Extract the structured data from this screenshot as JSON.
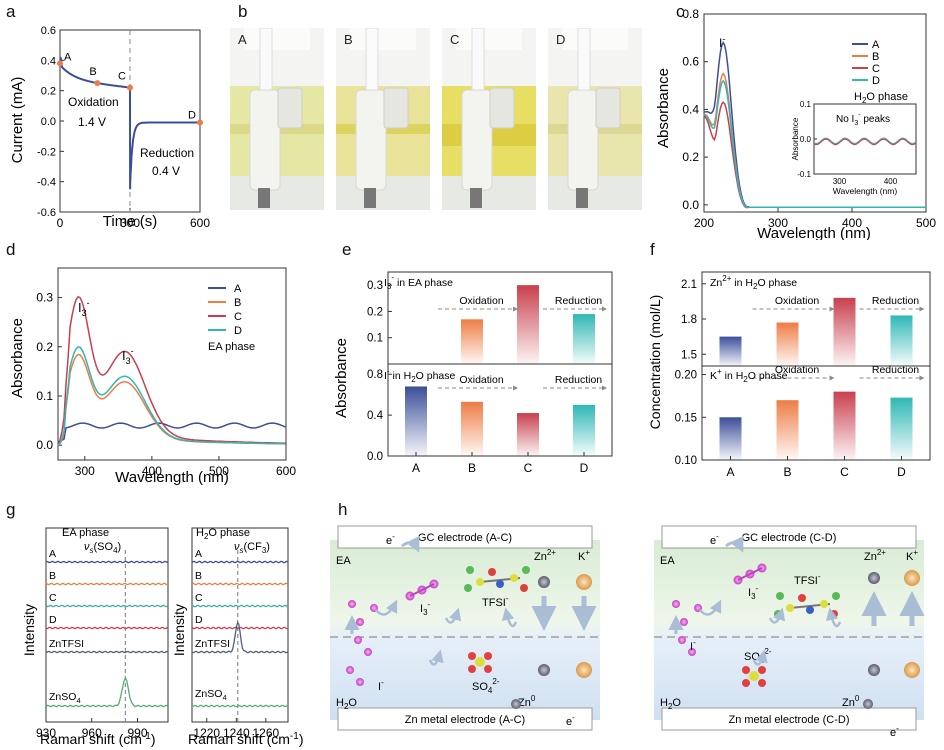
{
  "panel_labels": {
    "a": "a",
    "b": "b",
    "c": "c",
    "d": "d",
    "e": "e",
    "f": "f",
    "g": "g",
    "h": "h"
  },
  "colors": {
    "A": "#3b4e9a",
    "B": "#ee7d45",
    "C": "#c8404e",
    "D": "#2fb8b5",
    "grey": "#888888",
    "green": "#52b06f"
  },
  "panel_a": {
    "xlabel": "Time (s)",
    "ylabel": "Current (mA)",
    "xticks": [
      "0",
      "300",
      "600"
    ],
    "yticks": [
      "0.6",
      "0.4",
      "0.2",
      "0.0",
      "-0.2",
      "-0.4",
      "-0.6"
    ],
    "points": [
      "A",
      "B",
      "C",
      "D"
    ],
    "point_values": [
      [
        0,
        0.38
      ],
      [
        160,
        0.25
      ],
      [
        300,
        0.22
      ],
      [
        600,
        -0.01
      ]
    ],
    "oxidation": "Oxidation",
    "oxidation_v": "1.4 V",
    "reduction": "Reduction",
    "reduction_v": "0.4 V"
  },
  "panel_b": {
    "labels": [
      "A",
      "B",
      "C",
      "D"
    ]
  },
  "panel_c": {
    "xlabel": "Wavelength (nm)",
    "ylabel": "Absorbance",
    "xticks": [
      "200",
      "300",
      "400",
      "500"
    ],
    "yticks": [
      "0.8",
      "0.6",
      "0.4",
      "0.2",
      "0.0"
    ],
    "peak_label": "I",
    "peak_sup": "-",
    "legend": [
      "A",
      "B",
      "C",
      "D"
    ],
    "legend_note": "H",
    "legend_note_sub": "2",
    "legend_note_rest": "O phase",
    "peak_values": [
      0.68,
      0.55,
      0.43,
      0.52
    ],
    "inset": {
      "xlabel": "Wavelength (nm)",
      "ylabel": "Absorbance",
      "xticks": [
        "300",
        "400"
      ],
      "yticks": [
        "0.1",
        "0.0",
        "-0.1"
      ],
      "note": "No I",
      "note_sub": "3",
      "note_sup": "-",
      "note_rest": " peaks"
    }
  },
  "panel_d": {
    "xlabel": "Wavelength (nm)",
    "ylabel": "Absorbance",
    "xticks": [
      "300",
      "400",
      "500",
      "600"
    ],
    "yticks": [
      "0.3",
      "0.2",
      "0.1",
      "0.0"
    ],
    "peak_label": "I",
    "peak_sub": "3",
    "peak_sup": "-",
    "legend": [
      "A",
      "B",
      "C",
      "D"
    ],
    "legend_note": "EA phase",
    "peak1_values": [
      0.04,
      0.18,
      0.295,
      0.195
    ],
    "peak2_values": [
      0.04,
      0.115,
      0.17,
      0.125
    ]
  },
  "panel_e": {
    "ylabel": "Absorbance",
    "categories": [
      "A",
      "B",
      "C",
      "D"
    ],
    "top": {
      "title_pre": "I",
      "title_sub": "3",
      "title_sup": "-",
      "title_rest": " in EA phase",
      "values": [
        0.0,
        0.17,
        0.3,
        0.19
      ],
      "yticks": [
        "0.3",
        "0.2",
        "0.1"
      ]
    },
    "bottom": {
      "title_pre": "I",
      "title_sup": "-",
      "title_mid": " in H",
      "title_sub": "2",
      "title_rest": "O phase",
      "values": [
        0.68,
        0.53,
        0.42,
        0.5
      ],
      "yticks": [
        "0.8",
        "0.4",
        "0.0"
      ]
    },
    "oxidation": "Oxidation",
    "reduction": "Reduction"
  },
  "panel_f": {
    "ylabel": "Concentration (mol/L)",
    "categories": [
      "A",
      "B",
      "C",
      "D"
    ],
    "top": {
      "title_pre": "Zn",
      "title_sup": "2+",
      "title_mid": " in H",
      "title_sub": "2",
      "title_rest": "O phase",
      "values": [
        1.65,
        1.77,
        1.98,
        1.83
      ],
      "yticks": [
        "2.1",
        "1.8",
        "1.5"
      ]
    },
    "bottom": {
      "title_pre": "K",
      "title_sup": "+",
      "title_mid": " in H",
      "title_sub": "2",
      "title_rest": "O phase",
      "values": [
        0.15,
        0.17,
        0.18,
        0.173
      ],
      "yticks": [
        "0.20",
        "0.15",
        "0.10"
      ]
    },
    "oxidation": "Oxidation",
    "reduction": "Reduction"
  },
  "panel_g": {
    "ylabel": "Intensity",
    "xlabel": "Raman shift (cm",
    "xlabel_sup": "-1",
    "xlabel_end": ")",
    "left": {
      "title": "EA phase",
      "mode": "ν",
      "mode_sub": "s",
      "mode_rest": "(SO",
      "mode_sub2": "4",
      "mode_end": ")",
      "rows": [
        "A",
        "B",
        "C",
        "D",
        "ZnTFSI",
        "ZnSO",
        "4"
      ],
      "xticks": [
        "930",
        "960",
        "990"
      ]
    },
    "right": {
      "title_pre": "H",
      "title_sub": "2",
      "title_rest": "O phase",
      "mode": "ν",
      "mode_sub": "s",
      "mode_rest": "(CF",
      "mode_sub2": "3",
      "mode_end": ")",
      "rows": [
        "A",
        "B",
        "C",
        "D",
        "ZnTFSI",
        "ZnSO",
        "4"
      ],
      "xticks": [
        "1220",
        "1240",
        "1260"
      ]
    }
  },
  "panel_h": {
    "left": {
      "top_electrode": "GC electrode (A-C)",
      "bottom_electrode": "Zn metal electrode (A-C)"
    },
    "right": {
      "top_electrode": "GC electrode (C-D)",
      "bottom_electrode": "Zn metal electrode (C-D)"
    },
    "ea": "EA",
    "h2o_pre": "H",
    "h2o_sub": "2",
    "h2o_rest": "O",
    "e_minus": "e",
    "minus": "-",
    "i_minus": "I",
    "i3": "I",
    "i3_sub": "3",
    "tfsi": "TFSI",
    "zn2": "Zn",
    "zn2_sup": "2+",
    "kplus": "K",
    "kplus_sup": "+",
    "so4": "SO",
    "so4_sub": "4",
    "so4_sup": "2-",
    "zn0": "Zn",
    "zn0_sup": "0"
  }
}
